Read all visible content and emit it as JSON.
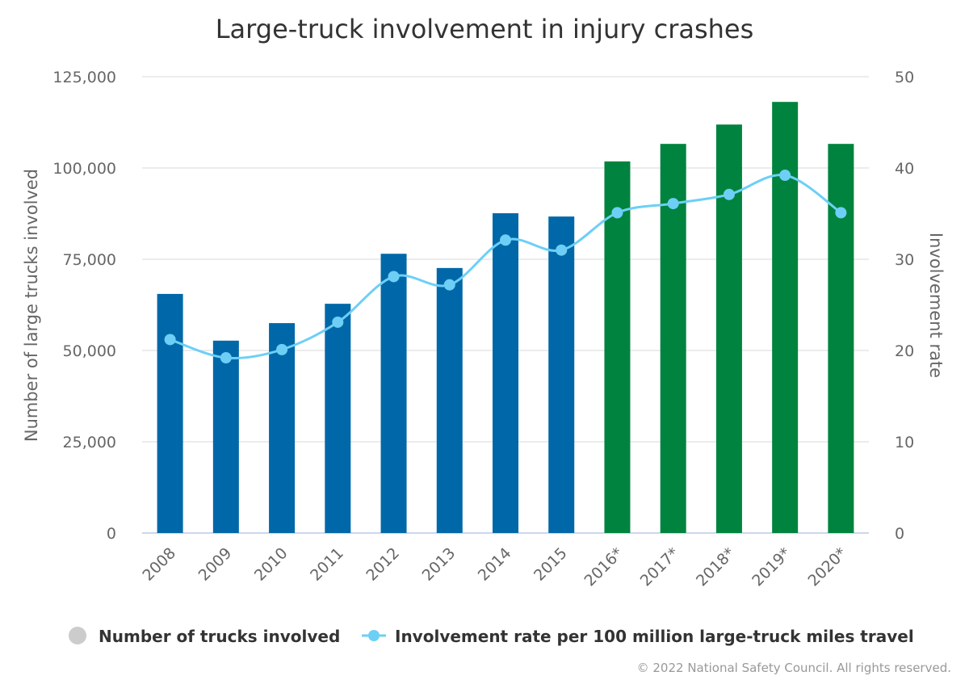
{
  "chart_data": {
    "type": "bar+line",
    "title": "Large-truck involvement in injury crashes",
    "categories": [
      "2008",
      "2009",
      "2010",
      "2011",
      "2012",
      "2013",
      "2014",
      "2015",
      "2016*",
      "2017*",
      "2018*",
      "2019*",
      "2020*"
    ],
    "series": [
      {
        "name": "Number of trucks involved",
        "type": "bar",
        "axis": "left",
        "values": [
          65500,
          52700,
          57500,
          62800,
          76500,
          72600,
          87600,
          86700,
          101800,
          106600,
          111900,
          118100,
          106600
        ],
        "colors": [
          "#0068a8",
          "#0068a8",
          "#0068a8",
          "#0068a8",
          "#0068a8",
          "#0068a8",
          "#0068a8",
          "#0068a8",
          "#00833e",
          "#00833e",
          "#00833e",
          "#00833e",
          "#00833e"
        ]
      },
      {
        "name": "Involvement rate per 100 million large-truck miles travel",
        "type": "line",
        "axis": "right",
        "values": [
          21.2,
          19.2,
          20.1,
          23.1,
          28.1,
          27.2,
          32.1,
          31.0,
          35.1,
          36.1,
          37.1,
          39.2,
          35.1
        ],
        "color": "#6dcff6"
      }
    ],
    "ylabel": "Number of large trucks involved",
    "ylim": [
      0,
      125000
    ],
    "yticks": [
      "0",
      "25,000",
      "50,000",
      "75,000",
      "100,000",
      "125,000"
    ],
    "y2label": "Involvement rate",
    "y2lim": [
      0,
      50
    ],
    "y2ticks": [
      "0",
      "10",
      "20",
      "30",
      "40",
      "50"
    ],
    "grid": true,
    "legend_position": "bottom",
    "legend_marker_color": "#cccccc"
  },
  "credit": "© 2022 National Safety Council. All rights reserved."
}
